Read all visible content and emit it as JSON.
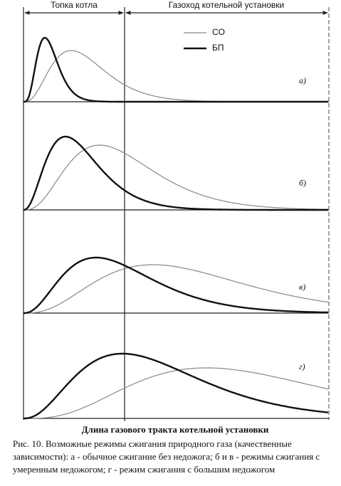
{
  "header": {
    "left": "Топка котла",
    "right": "Газоход котельной установки"
  },
  "legend": [
    "CO",
    "БП"
  ],
  "panels": [
    "а)",
    "б)",
    "в)",
    "г)"
  ],
  "x_axis_label": "Длина газового тракта котельной установки",
  "caption": [
    "Рис. 10. Возможные режимы сжигания природного  газа (качественные",
    "зависимости): а - обычное сжигание без недожога; б и в - режимы сжигания с",
    "умеренным недожогом; г - режим сжигания с большим недожогом"
  ]
}
